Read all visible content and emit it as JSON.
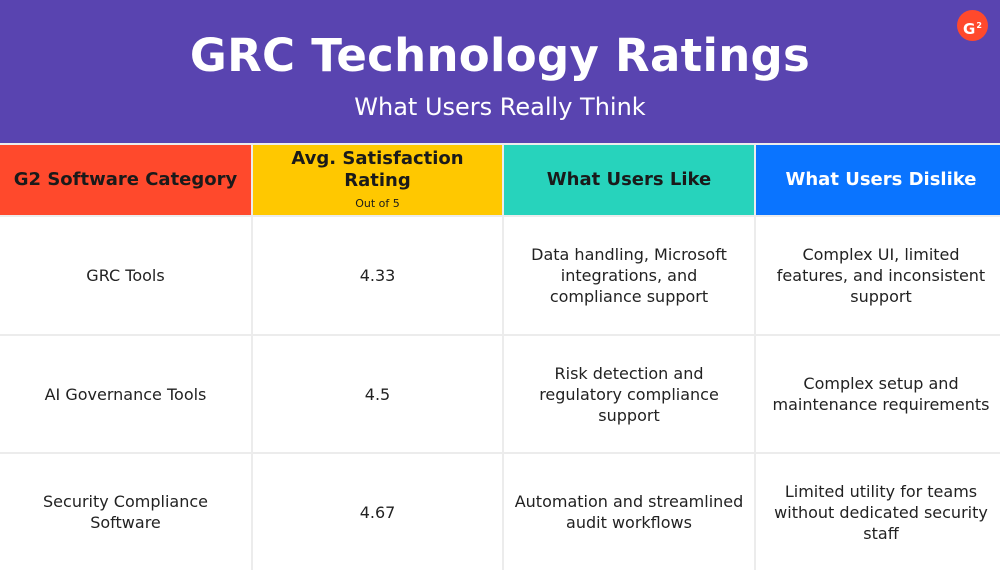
{
  "header": {
    "title": "GRC Technology Ratings",
    "subtitle": "What Users Really Think",
    "logo_text": "G",
    "background_color": "#5944b0"
  },
  "table": {
    "columns": [
      {
        "label": "G2 Software Category",
        "sublabel": "",
        "color": "#ff492c"
      },
      {
        "label": "Avg. Satisfaction Rating",
        "sublabel": "Out of 5",
        "color": "#ffc800"
      },
      {
        "label": "What Users Like",
        "sublabel": "",
        "color": "#27d3bc"
      },
      {
        "label": "What Users Dislike",
        "sublabel": "",
        "color": "#0a74ff"
      }
    ],
    "rows": [
      {
        "category": "GRC Tools",
        "rating": "4.33",
        "likes": "Data handling, Microsoft integrations, and compliance support",
        "dislikes": "Complex UI, limited features, and inconsistent support"
      },
      {
        "category": "AI Governance Tools",
        "rating": "4.5",
        "likes": "Risk detection and regulatory compliance support",
        "dislikes": "Complex setup and maintenance requirements"
      },
      {
        "category": "Security Compliance Software",
        "rating": "4.67",
        "likes": "Automation and streamlined audit workflows",
        "dislikes": "Limited utility for teams without dedicated security staff"
      }
    ]
  }
}
